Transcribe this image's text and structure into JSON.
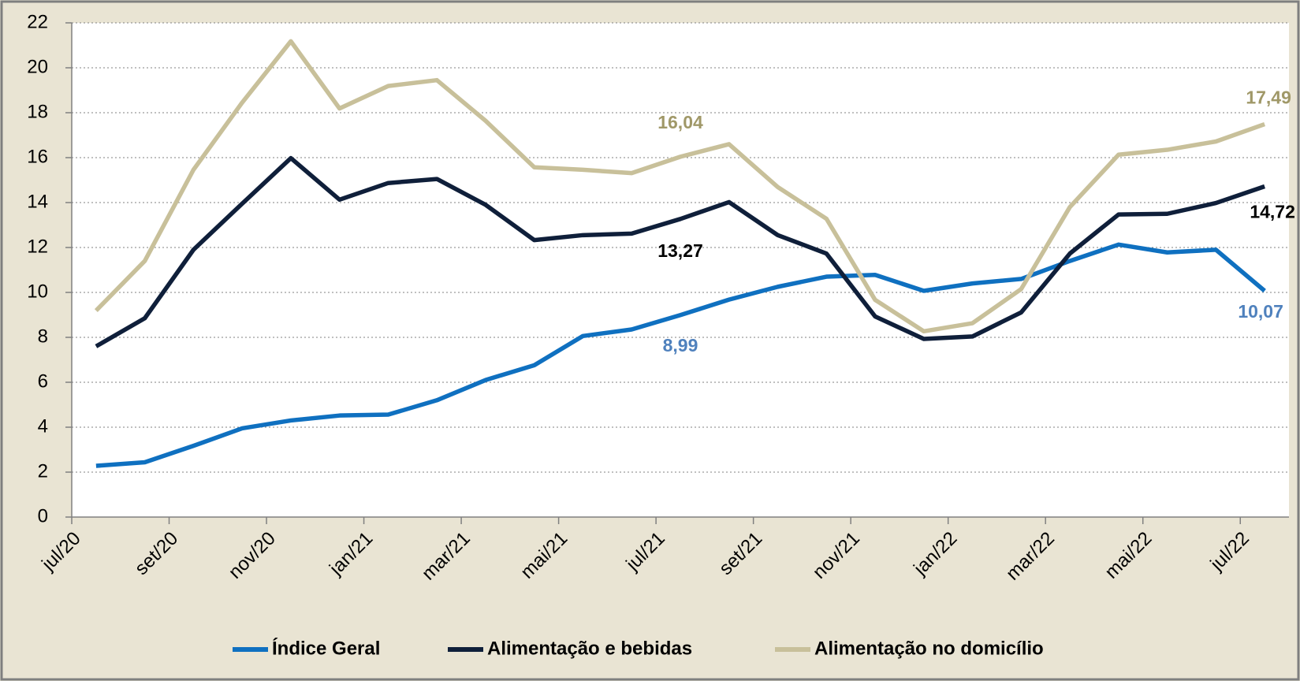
{
  "chart_data": {
    "type": "line",
    "categories": [
      "jul/20",
      null,
      "set/20",
      null,
      "nov/20",
      null,
      "jan/21",
      null,
      "mar/21",
      null,
      "mai/21",
      null,
      "jul/21",
      null,
      "set/21",
      null,
      "nov/21",
      null,
      "jan/22",
      null,
      "mar/22",
      null,
      "mai/22",
      null,
      "jul/22"
    ],
    "series": [
      {
        "name": "Índice Geral",
        "color": "#0f70c0",
        "label_color": "#4f81bd",
        "values": [
          2.28,
          2.44,
          3.17,
          3.95,
          4.3,
          4.52,
          4.56,
          5.2,
          6.1,
          6.76,
          8.06,
          8.35,
          8.99,
          9.68,
          10.25,
          10.7,
          10.78,
          10.07,
          10.4,
          10.6,
          11.4,
          12.13,
          11.78,
          11.9,
          10.07
        ],
        "value_labels": [
          null,
          null,
          null,
          null,
          null,
          null,
          null,
          null,
          null,
          null,
          null,
          null,
          "8,99",
          null,
          null,
          null,
          null,
          null,
          null,
          null,
          null,
          null,
          null,
          null,
          "10,07"
        ]
      },
      {
        "name": "Alimentação e bebidas",
        "color": "#0f1f3a",
        "label_color": "#000000",
        "values": [
          7.6,
          8.85,
          11.9,
          13.95,
          15.98,
          14.13,
          14.87,
          15.05,
          13.9,
          12.33,
          12.55,
          12.62,
          13.27,
          14.02,
          12.55,
          11.73,
          8.93,
          7.93,
          8.04,
          9.11,
          11.73,
          13.47,
          13.5,
          13.98,
          14.72
        ],
        "value_labels": [
          null,
          null,
          null,
          null,
          null,
          null,
          null,
          null,
          null,
          null,
          null,
          null,
          "13,27",
          null,
          null,
          null,
          null,
          null,
          null,
          null,
          null,
          null,
          null,
          null,
          "14,72"
        ]
      },
      {
        "name": "Alimentação no domicílio",
        "color": "#c8c09a",
        "label_color": "#a09868",
        "values": [
          9.19,
          11.4,
          15.46,
          18.45,
          21.18,
          18.19,
          19.19,
          19.45,
          17.64,
          15.57,
          15.46,
          15.31,
          16.04,
          16.6,
          14.69,
          13.28,
          9.67,
          8.27,
          8.63,
          10.15,
          13.8,
          16.13,
          16.35,
          16.72,
          17.49
        ],
        "value_labels": [
          null,
          null,
          null,
          null,
          null,
          null,
          null,
          null,
          null,
          null,
          null,
          null,
          "16,04",
          null,
          null,
          null,
          null,
          null,
          null,
          null,
          null,
          null,
          null,
          null,
          "17,49"
        ]
      }
    ],
    "ylim": [
      0,
      22
    ],
    "yticks": [
      0,
      2,
      4,
      6,
      8,
      10,
      12,
      14,
      16,
      18,
      20,
      22
    ],
    "grid": true,
    "legend": "bottom"
  }
}
